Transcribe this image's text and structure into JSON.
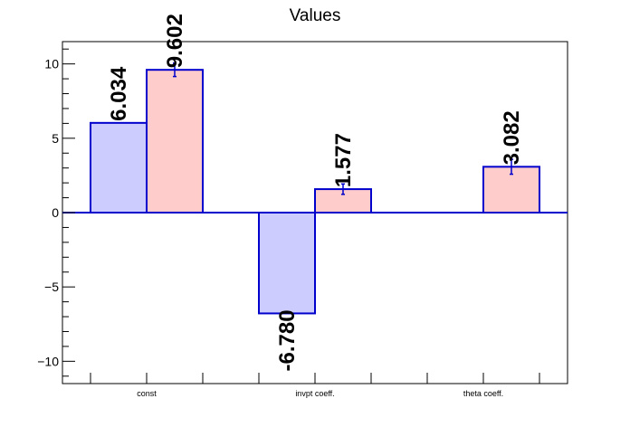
{
  "chart_data": {
    "type": "bar",
    "title": "Values",
    "categories": [
      "const",
      "invpt coeff.",
      "theta coeff."
    ],
    "series": [
      {
        "values": [
          6.034,
          -6.78,
          null
        ],
        "errors": [
          0,
          0,
          0
        ],
        "color": "#ccccff"
      },
      {
        "values": [
          9.602,
          1.577,
          3.082
        ],
        "errors": [
          0.45,
          0.35,
          0.5
        ],
        "color": "#ffcccc"
      }
    ],
    "value_labels": [
      [
        "6.034",
        "-6.780",
        ""
      ],
      [
        "9.602",
        "1.577",
        "3.082"
      ]
    ],
    "ylim": [
      -11.5,
      11.5
    ],
    "yticks": [
      -10,
      -5,
      0,
      5,
      10
    ],
    "ytick_labels": [
      "−10",
      "−5",
      "0",
      "5",
      "10"
    ],
    "grid": false,
    "outline_color": "#0000cc"
  }
}
